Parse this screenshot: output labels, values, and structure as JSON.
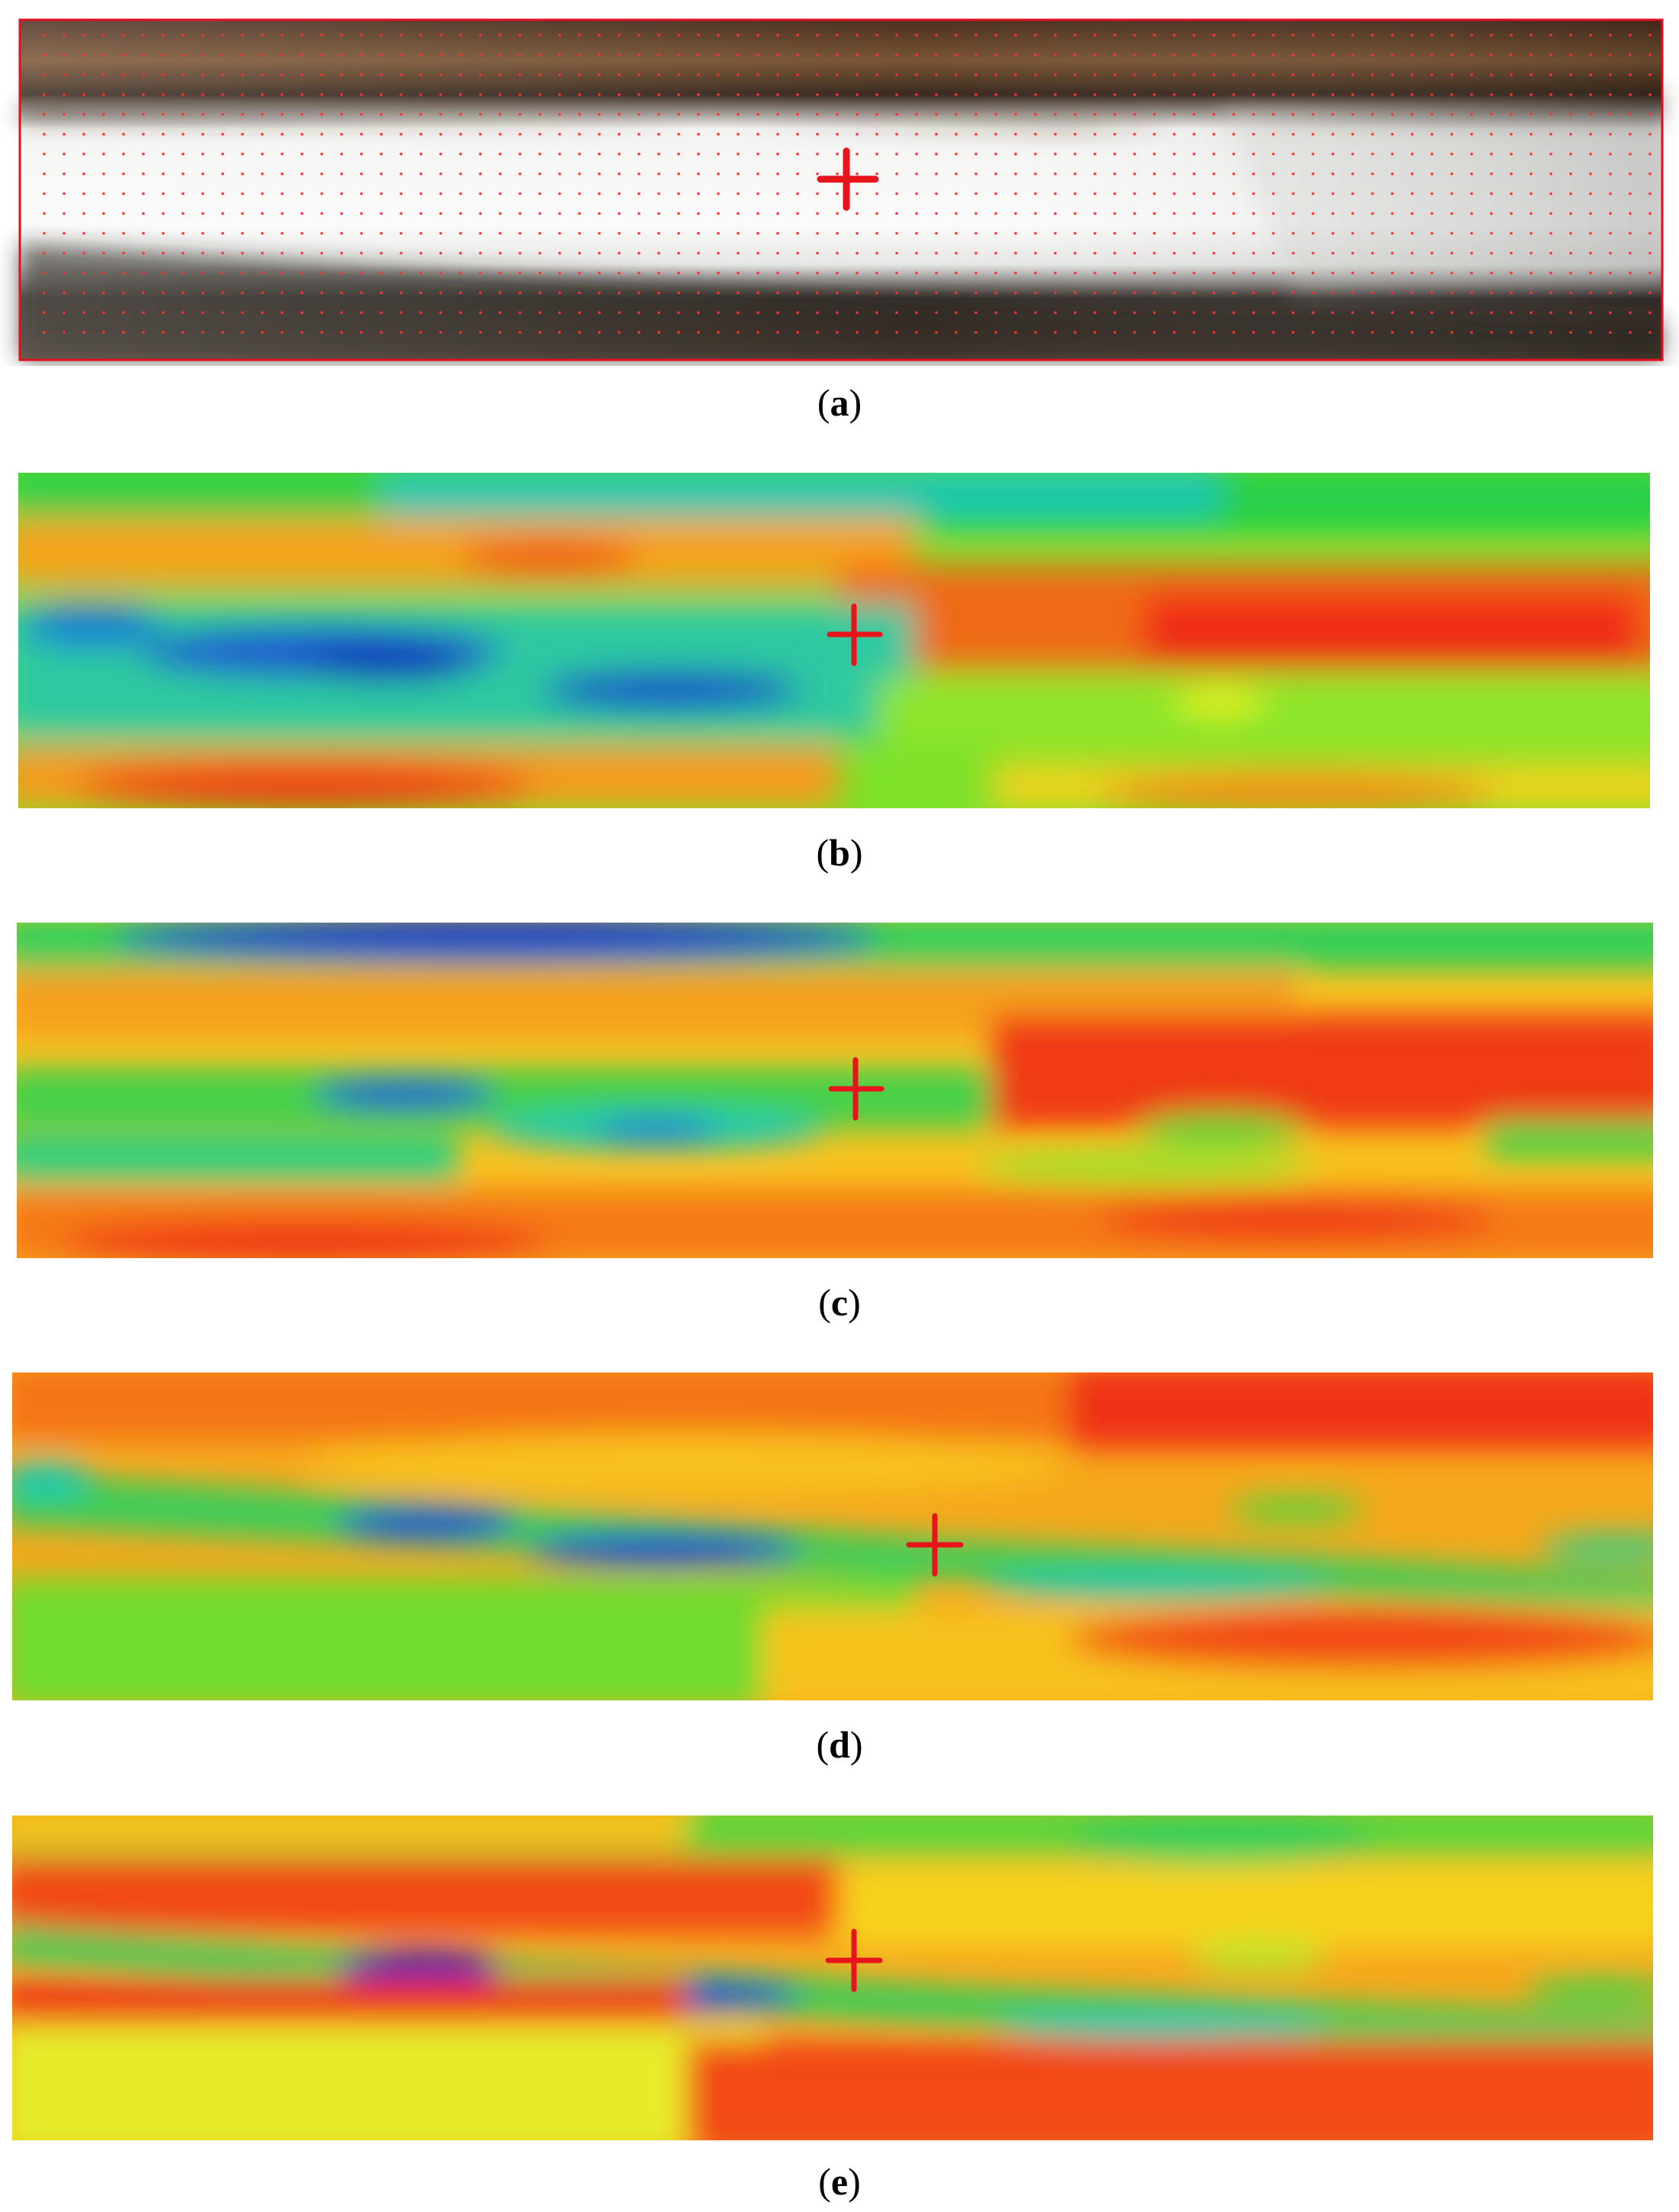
{
  "panels": [
    {
      "id": "a",
      "label": "a",
      "kind": "photo"
    },
    {
      "id": "b",
      "label": "b",
      "kind": "heatmap"
    },
    {
      "id": "c",
      "label": "c",
      "kind": "heatmap"
    },
    {
      "id": "d",
      "label": "d",
      "kind": "heatmap"
    },
    {
      "id": "e",
      "label": "e",
      "kind": "heatmap"
    }
  ],
  "colors": {
    "marker": "#e8141c",
    "grid_dot": "#ff3030",
    "frame": "#e01020",
    "jet_blue": "#0a1fb8",
    "jet_cyan": "#19c9c9",
    "jet_green": "#21d021",
    "jet_yellow": "#f4f21a",
    "jet_orange": "#f7a11a",
    "jet_red": "#f01d10",
    "photo_white": "#fbfbfb",
    "photo_brown": "#5a3a22",
    "photo_dark": "#2a2420"
  },
  "icons": [
    "crosshair-marker"
  ]
}
